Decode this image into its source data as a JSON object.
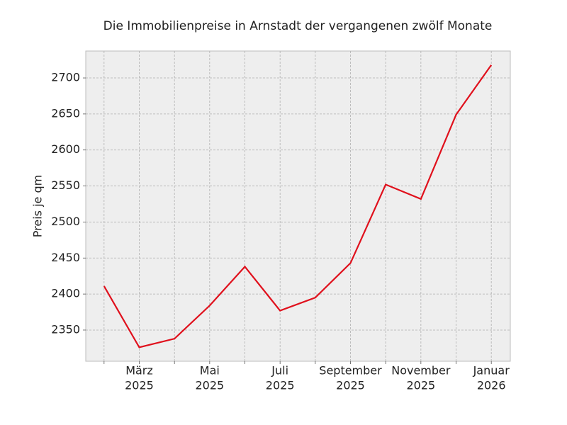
{
  "chart_data": {
    "type": "line",
    "title": "Die Immobilienpreise in Arnstadt der vergangenen zwölf Monate",
    "y_label": "Preis je qm",
    "categories": [
      null,
      [
        "März",
        "2025"
      ],
      null,
      [
        "Mai",
        "2025"
      ],
      null,
      [
        "Juli",
        "2025"
      ],
      null,
      [
        "September",
        "2025"
      ],
      null,
      [
        "November",
        "2025"
      ],
      null,
      [
        "Januar",
        "2026"
      ]
    ],
    "series": [
      {
        "name": "Preis je qm",
        "color": "#e0101c",
        "values": [
          2411,
          2326,
          2338,
          2384,
          2438,
          2377,
          2395,
          2443,
          2552,
          2532,
          2649,
          2718
        ]
      }
    ],
    "ylim": [
      2306.7,
      2737.4
    ],
    "yticks": [
      2350,
      2400,
      2450,
      2500,
      2550,
      2600,
      2650,
      2700
    ],
    "grid": true
  }
}
